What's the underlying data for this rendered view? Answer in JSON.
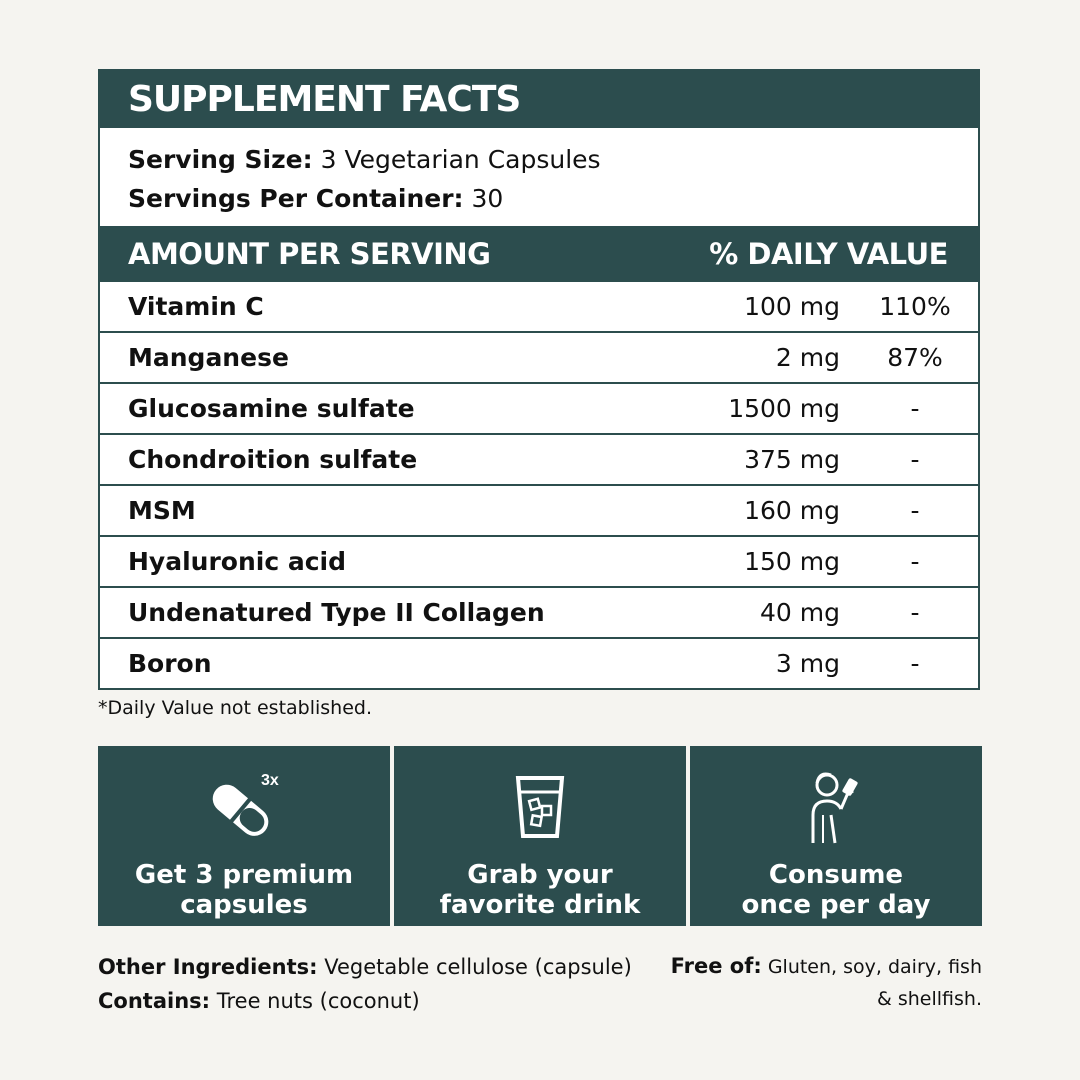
{
  "title": "SUPPLEMENT FACTS",
  "serving": {
    "size_label": "Serving Size:",
    "size_value": "3 Vegetarian Capsules",
    "per_container_label": "Servings Per Container:",
    "per_container_value": "30"
  },
  "table_header": {
    "amount": "AMOUNT PER SERVING",
    "daily_value": "% DAILY VALUE"
  },
  "rows": [
    {
      "name": "Vitamin C",
      "amount": "100 mg",
      "dv": "110%"
    },
    {
      "name": "Manganese",
      "amount": "2 mg",
      "dv": "87%"
    },
    {
      "name": "Glucosamine sulfate",
      "amount": "1500 mg",
      "dv": "-"
    },
    {
      "name": "Chondroition sulfate",
      "amount": "375 mg",
      "dv": "-"
    },
    {
      "name": "MSM",
      "amount": "160 mg",
      "dv": "-"
    },
    {
      "name": "Hyaluronic acid",
      "amount": "150 mg",
      "dv": "-"
    },
    {
      "name": "Undenatured Type II Collagen",
      "amount": "40 mg",
      "dv": "-"
    },
    {
      "name": "Boron",
      "amount": "3 mg",
      "dv": "-"
    }
  ],
  "footnote": "*Daily Value not established.",
  "steps": [
    {
      "icon": "capsule-icon",
      "badge": "3x",
      "line1": "Get 3 premium",
      "line2": "capsules"
    },
    {
      "icon": "glass-icon",
      "line1": "Grab your",
      "line2": "favorite drink"
    },
    {
      "icon": "person-drinking-icon",
      "line1": "Consume",
      "line2": "once per day"
    }
  ],
  "other_ingredients": {
    "label": "Other Ingredients:",
    "value": "Vegetable cellulose (capsule)"
  },
  "contains": {
    "label": "Contains:",
    "value": "Tree nuts (coconut)"
  },
  "free_of": {
    "label": "Free of:",
    "value_line1": "Gluten, soy, dairy, fish",
    "value_line2": "& shellfish."
  },
  "colors": {
    "accent": "#2c4d4e",
    "background": "#f5f4f0"
  }
}
